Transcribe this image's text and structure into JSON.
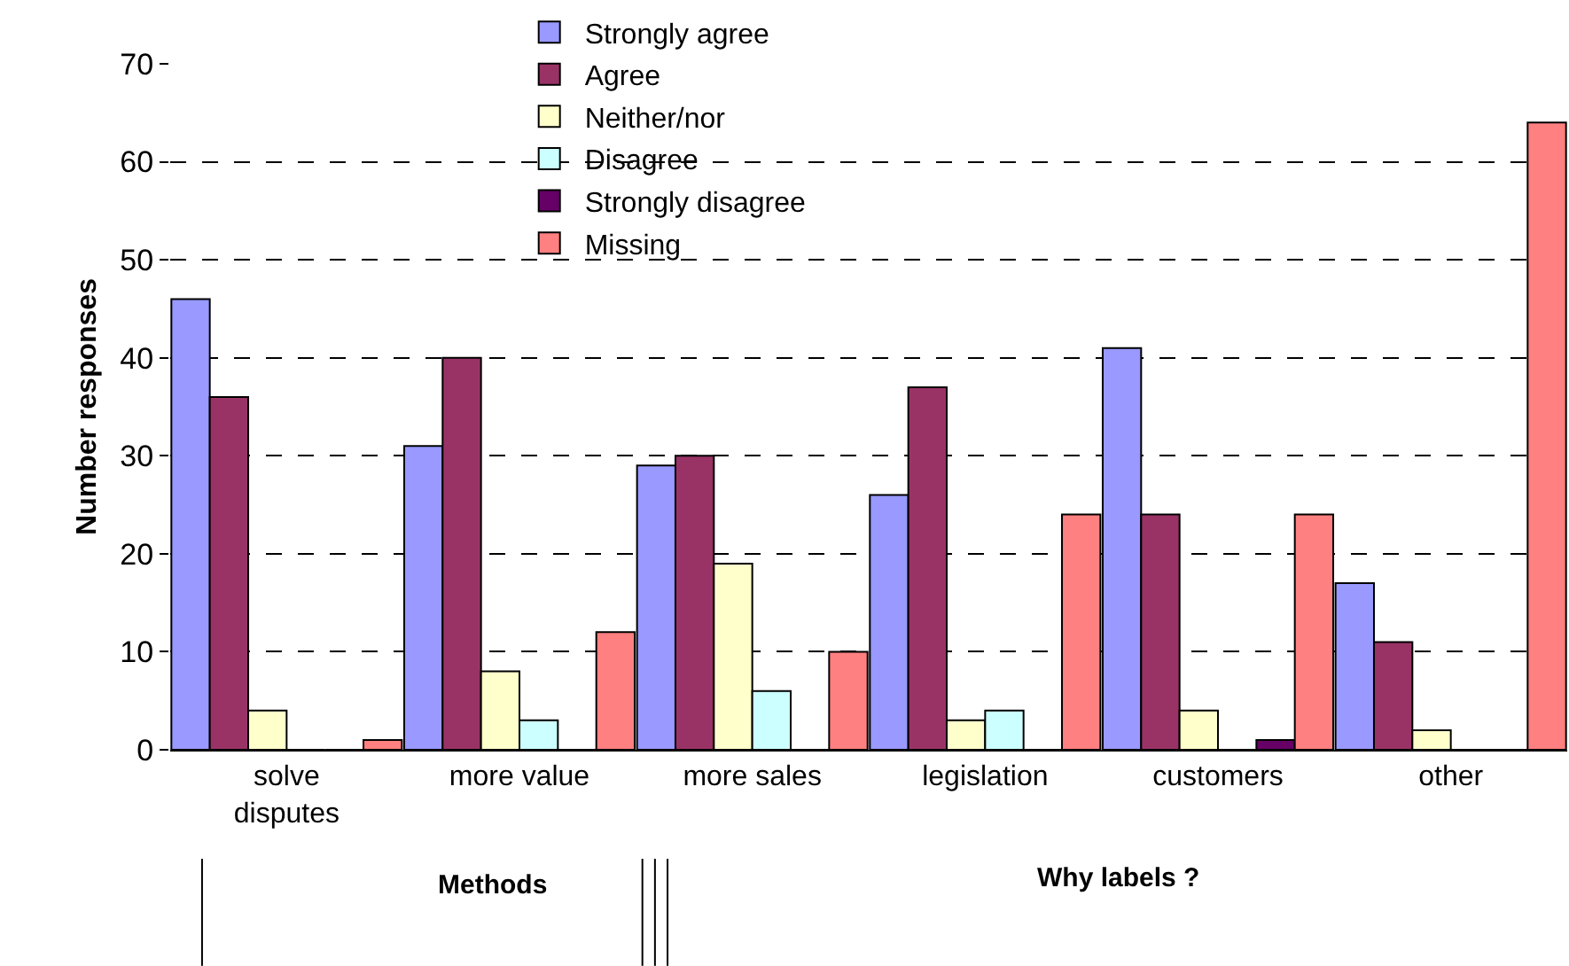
{
  "chart_data": {
    "type": "bar",
    "ylabel": "Number responses",
    "categories": [
      "solve\ndisputes",
      "more value",
      "more sales",
      "legislation",
      "customers",
      "other"
    ],
    "series": [
      {
        "name": "Strongly agree",
        "color": "#9999ff",
        "values": [
          46,
          31,
          29,
          26,
          41,
          17
        ]
      },
      {
        "name": "Agree",
        "color": "#993366",
        "values": [
          36,
          40,
          30,
          37,
          24,
          11
        ]
      },
      {
        "name": "Neither/nor",
        "color": "#ffffcc",
        "values": [
          4,
          8,
          19,
          3,
          4,
          2
        ]
      },
      {
        "name": "Disagree",
        "color": "#ccffff",
        "values": [
          0,
          3,
          6,
          4,
          0,
          0
        ]
      },
      {
        "name": "Strongly disagree",
        "color": "#660066",
        "values": [
          0,
          0,
          0,
          0,
          1,
          0
        ]
      },
      {
        "name": "Missing",
        "color": "#ff8080",
        "values": [
          1,
          12,
          10,
          24,
          24,
          64
        ]
      }
    ],
    "ylim": [
      0,
      70
    ],
    "yticks": [
      0,
      10,
      20,
      30,
      40,
      50,
      60,
      70
    ],
    "grid": "y",
    "legend": "top",
    "annotations": [
      "Methods",
      "Why labels ?"
    ]
  }
}
